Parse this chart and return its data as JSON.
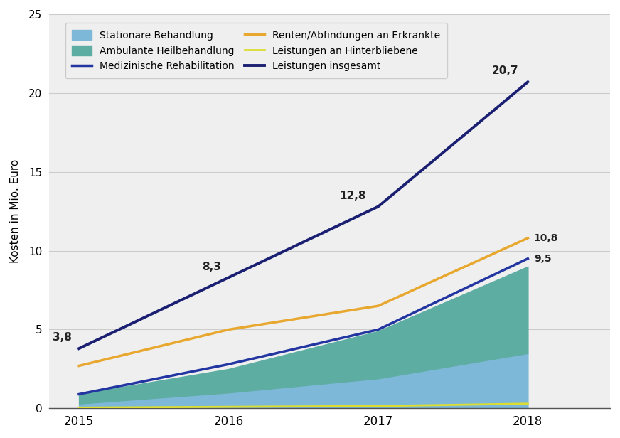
{
  "years": [
    2015,
    2016,
    2017,
    2018
  ],
  "stationaere_behandlung": [
    0.3,
    1.0,
    1.9,
    3.5
  ],
  "ambulante_heilbehandlung": [
    0.6,
    1.5,
    3.0,
    5.5
  ],
  "medizinische_rehabilitation": [
    0.9,
    2.8,
    5.0,
    9.5
  ],
  "renten_abfindungen": [
    2.7,
    5.0,
    6.5,
    10.8
  ],
  "leistungen_hinterbliebene": [
    0.05,
    0.1,
    0.15,
    0.3
  ],
  "leistungen_insgesamt": [
    3.8,
    8.3,
    12.8,
    20.7
  ],
  "labels_insgesamt": [
    "3,8",
    "8,3",
    "12,8",
    "20,7"
  ],
  "color_stationaere": "#7EB8D8",
  "color_ambulante": "#5DADA3",
  "color_med_reha": "#2235A0",
  "color_renten": "#E8A830",
  "color_hinterbliebene": "#DDDD30",
  "color_insgesamt": "#1A1F72",
  "ylabel": "Kosten in Mio. Euro",
  "ylim": [
    0,
    25
  ],
  "yticks": [
    0,
    5,
    10,
    15,
    20,
    25
  ],
  "legend_stationaere": "Stationäre Behandlung",
  "legend_ambulante": "Ambulante Heilbehandlung",
  "legend_med_reha": "Medizinische Rehabilitation",
  "legend_renten": "Renten/Abfindungen an Erkrankte",
  "legend_hinterbliebene": "Leistungen an Hinterbliebene",
  "legend_insgesamt": "Leistungen insgesamt",
  "plot_bg_color": "#EFEFEF",
  "legend_bg": "#EFEFEF"
}
